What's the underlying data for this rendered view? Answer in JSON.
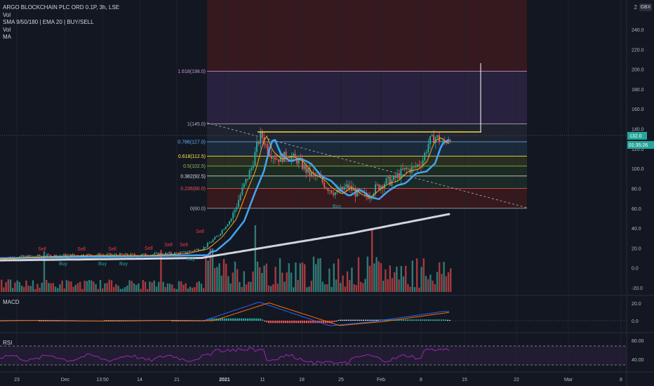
{
  "legend": {
    "symbol": "ARGO BLOCKCHAIN PLC ORD 0.1P, 3h, LSE",
    "vol": "Vol",
    "indicator": "SMA 9/50/180 | EMA 20 | BUY/SELL",
    "vol2": "Vol",
    "ma": "MA"
  },
  "currency_badge": "GBX",
  "price_axis_top_label": "2",
  "price_ticks": [
    "240.0",
    "220.0",
    "200.0",
    "180.0",
    "160.0",
    "140.0",
    "120.0",
    "100.0",
    "80.0",
    "60.0",
    "40.0",
    "20.0",
    "0.0",
    "-20.0"
  ],
  "price_tick_values": [
    240,
    220,
    200,
    180,
    160,
    140,
    120,
    100,
    80,
    60,
    40,
    20,
    0,
    -20
  ],
  "last_price": "132.0",
  "countdown": "01:35:26",
  "fib_levels": [
    {
      "label": "1.618(198.0)",
      "value": 198.0,
      "color": "#ce93d8"
    },
    {
      "label": "1(145.0)",
      "value": 145.0,
      "color": "#b2b5be"
    },
    {
      "label": "0.786(127.0)",
      "value": 127.0,
      "color": "#64b5f6"
    },
    {
      "label": "0.618(112.5)",
      "value": 112.5,
      "color": "#ffeb3b"
    },
    {
      "label": "0.5(102.5)",
      "value": 102.5,
      "color": "#8bc34a"
    },
    {
      "label": "0.382(92.5)",
      "value": 92.5,
      "color": "#e0e0e0"
    },
    {
      "label": "0.236(80.0)",
      "value": 80.0,
      "color": "#ef5350"
    },
    {
      "label": "0(60.0)",
      "value": 60.0,
      "color": "#b2b5be"
    }
  ],
  "signals": {
    "sell_label": "Sell",
    "buy_label": "Buy",
    "sell_count": 7,
    "buy_count": 5
  },
  "macd": {
    "title": "MACD",
    "ticks": [
      "20.0",
      "0.0"
    ]
  },
  "rsi": {
    "title": "RSI",
    "ticks": [
      "80.00",
      "40.00"
    ]
  },
  "time_axis": [
    "23",
    "Dec",
    "13:50",
    "14",
    "21",
    "2021",
    "11",
    "18",
    "25",
    "Feb",
    "8",
    "15",
    "22",
    "Mar",
    "8"
  ],
  "colors": {
    "up": "#26a69a",
    "down": "#ef5350",
    "background": "#131722",
    "sma180": "#d1d4dc",
    "ema20": "#42a5f5",
    "sma9": "#f5a623",
    "resistance": "#f7d33b"
  }
}
